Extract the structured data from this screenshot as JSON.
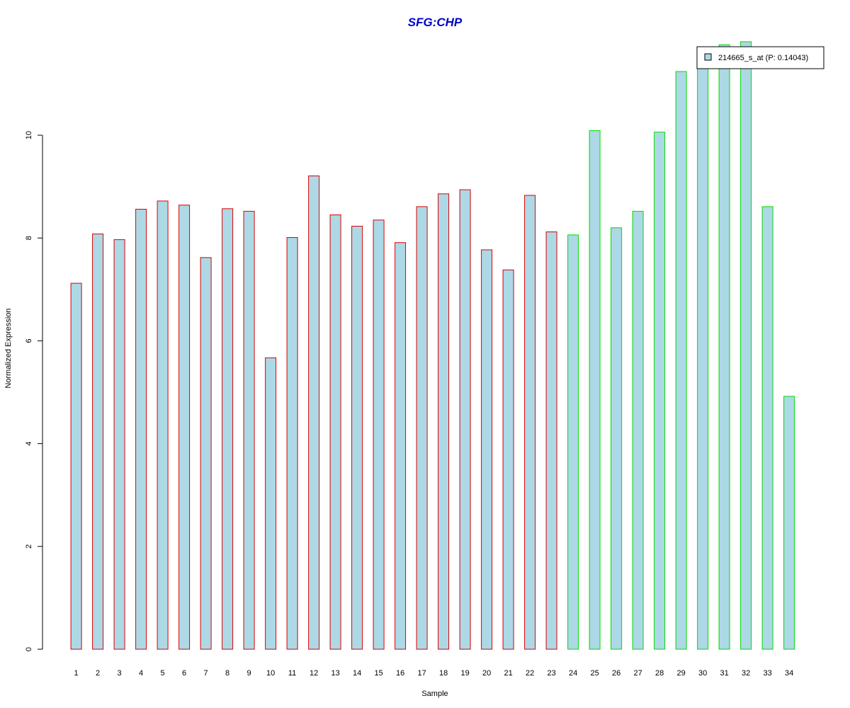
{
  "chart_data": {
    "type": "bar",
    "title": "SFG:CHP",
    "xlabel": "Sample",
    "ylabel": "Normalized Expression",
    "ylim": [
      0,
      12
    ],
    "yticks": [
      0,
      2,
      4,
      6,
      8,
      10
    ],
    "categories": [
      "1",
      "2",
      "3",
      "4",
      "5",
      "6",
      "7",
      "8",
      "9",
      "10",
      "11",
      "12",
      "13",
      "14",
      "15",
      "16",
      "17",
      "18",
      "19",
      "20",
      "21",
      "22",
      "23",
      "24",
      "25",
      "26",
      "27",
      "28",
      "29",
      "30",
      "31",
      "32",
      "33",
      "34"
    ],
    "series": [
      {
        "name": "214665_s_at (P: 0.14043)",
        "values": [
          7.12,
          8.08,
          7.97,
          8.56,
          8.72,
          8.64,
          7.62,
          8.57,
          8.52,
          5.67,
          8.01,
          9.21,
          8.45,
          8.23,
          8.35,
          7.91,
          8.61,
          8.86,
          8.94,
          7.77,
          7.38,
          8.83,
          8.12,
          8.06,
          10.09,
          8.2,
          8.52,
          10.06,
          11.24,
          11.52,
          11.76,
          11.82,
          8.61,
          4.92
        ]
      }
    ],
    "groups": [
      {
        "samples": "1-23",
        "border_color": "#dd0000"
      },
      {
        "samples": "24-34",
        "border_color": "#00dd00"
      }
    ],
    "bar_fill": "#add8e6",
    "title_color": "#0000cc",
    "grid": false,
    "legend_position": "top-right"
  }
}
